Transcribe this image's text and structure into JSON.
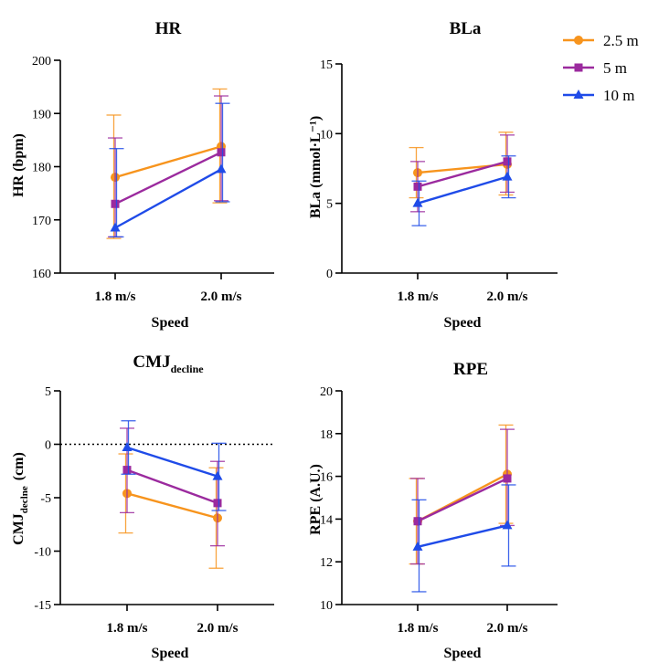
{
  "legend": {
    "placement": "top-right",
    "entries": [
      {
        "label": "2.5 m",
        "color": "#F7941D",
        "marker": "circle"
      },
      {
        "label": "5 m",
        "color": "#9B2A9E",
        "marker": "square"
      },
      {
        "label": "10 m",
        "color": "#1F4BE8",
        "marker": "triangle"
      }
    ]
  },
  "chart_data": [
    {
      "type": "line",
      "title": "HR",
      "ylabel": "HR (bpm)",
      "xlabel": "Speed",
      "categories": [
        "1.8 m/s",
        "2.0 m/s"
      ],
      "ylim": [
        160,
        200
      ],
      "yticks": [
        "160",
        "170",
        "180",
        "190",
        "200"
      ],
      "series": [
        {
          "name": "2.5 m",
          "values": [
            178,
            183.8
          ],
          "err_low": [
            166.5,
            173.2
          ],
          "err_high": [
            189.7,
            194.6
          ]
        },
        {
          "name": "5 m",
          "values": [
            173,
            182.7
          ],
          "err_low": [
            166.8,
            173.6
          ],
          "err_high": [
            185.4,
            193.3
          ]
        },
        {
          "name": "10 m",
          "values": [
            168.5,
            179.5
          ],
          "err_low": [
            166.8,
            173.4
          ],
          "err_high": [
            183.4,
            191.9
          ]
        }
      ]
    },
    {
      "type": "line",
      "title": "BLa",
      "ylabel": "BLa (mmol·L⁻¹)",
      "xlabel": "Speed",
      "categories": [
        "1.8 m/s",
        "2.0 m/s"
      ],
      "ylim": [
        0,
        15
      ],
      "yticks": [
        "0",
        "5",
        "10",
        "15"
      ],
      "series": [
        {
          "name": "2.5 m",
          "values": [
            7.2,
            7.8
          ],
          "err_low": [
            5.4,
            5.6
          ],
          "err_high": [
            9.0,
            10.1
          ]
        },
        {
          "name": "5 m",
          "values": [
            6.2,
            8.0
          ],
          "err_low": [
            4.4,
            5.8
          ],
          "err_high": [
            8.0,
            9.9
          ]
        },
        {
          "name": "10 m",
          "values": [
            5.0,
            6.9
          ],
          "err_low": [
            3.4,
            5.4
          ],
          "err_high": [
            6.6,
            8.4
          ]
        }
      ]
    },
    {
      "type": "line",
      "title": "CMJ",
      "title_sub": "decline",
      "ylabel": "CMJ",
      "ylabel_sub": "declne",
      "ylabel_unit": "(cm)",
      "xlabel": "Speed",
      "categories": [
        "1.8 m/s",
        "2.0 m/s"
      ],
      "ylim": [
        -15,
        5
      ],
      "yticks": [
        "-15",
        "-10",
        "-5",
        "0",
        "5"
      ],
      "reference_line": 0,
      "series": [
        {
          "name": "2.5 m",
          "values": [
            -4.6,
            -6.9
          ],
          "err_low": [
            -8.3,
            -11.6
          ],
          "err_high": [
            -0.9,
            -2.2
          ]
        },
        {
          "name": "5 m",
          "values": [
            -2.4,
            -5.5
          ],
          "err_low": [
            -6.4,
            -9.5
          ],
          "err_high": [
            1.5,
            -1.6
          ]
        },
        {
          "name": "10 m",
          "values": [
            -0.3,
            -3.0
          ],
          "err_low": [
            -2.8,
            -6.2
          ],
          "err_high": [
            2.2,
            0.1
          ]
        }
      ]
    },
    {
      "type": "line",
      "title": "RPE",
      "ylabel": "RPE (A.U.)",
      "xlabel": "Speed",
      "categories": [
        "1.8 m/s",
        "2.0 m/s"
      ],
      "ylim": [
        10,
        20
      ],
      "yticks": [
        "10",
        "12",
        "14",
        "16",
        "18",
        "20"
      ],
      "series": [
        {
          "name": "2.5 m",
          "values": [
            13.9,
            16.1
          ],
          "err_low": [
            11.9,
            13.8
          ],
          "err_high": [
            15.9,
            18.4
          ]
        },
        {
          "name": "5 m",
          "values": [
            13.9,
            15.9
          ],
          "err_low": [
            11.9,
            13.7
          ],
          "err_high": [
            15.9,
            18.2
          ]
        },
        {
          "name": "10 m",
          "values": [
            12.7,
            13.7
          ],
          "err_low": [
            10.6,
            11.8
          ],
          "err_high": [
            14.9,
            15.6
          ]
        }
      ]
    }
  ]
}
